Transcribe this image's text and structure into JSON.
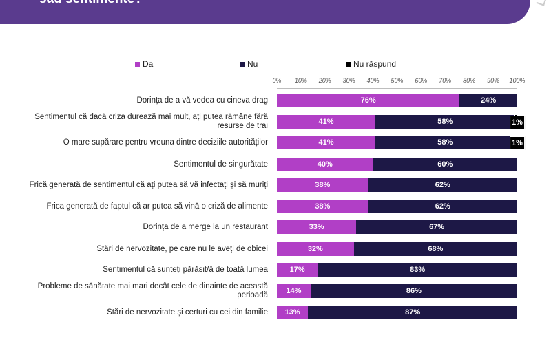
{
  "header": {
    "title": "sau sentimente?"
  },
  "colors": {
    "banner": "#5a3b8e",
    "da": "#b13fc6",
    "nu": "#1d1846",
    "nu_raspund": "#000000"
  },
  "chart_data": {
    "type": "bar",
    "orientation": "horizontal",
    "stacked": true,
    "title": "",
    "xlabel": "",
    "ylabel": "",
    "xlim": [
      0,
      100
    ],
    "ticks": [
      "0%",
      "10%",
      "20%",
      "30%",
      "40%",
      "50%",
      "60%",
      "70%",
      "80%",
      "90%",
      "100%"
    ],
    "legend": [
      "Da",
      "Nu",
      "Nu răspund"
    ],
    "legend_position": "top",
    "categories": [
      "Dorința de a vă vedea cu cineva drag",
      "Sentimentul că dacă criza durează mai mult, ați putea rămâne fără resurse de trai",
      "O mare supărare pentru vreuna dintre deciziile autorităților",
      "Sentimentul de singurătate",
      "Frică generată de sentimentul că ați putea să vă infectați și să muriți",
      "Frica generată de faptul că ar putea să vină o criză de alimente",
      "Dorința de a merge la un restaurant",
      "Stări de nervozitate, pe care nu le aveți de obicei",
      "Sentimentul că sunteți părăsit/ă de toată lumea",
      "Probleme de sănătate mai mari decât cele de dinainte de această perioadă",
      "Stări de nervozitate și certuri cu cei din familie"
    ],
    "series": [
      {
        "name": "Da",
        "values": [
          76,
          41,
          41,
          40,
          38,
          38,
          33,
          32,
          17,
          14,
          13
        ],
        "labels": [
          "76%",
          "41%",
          "41%",
          "40%",
          "38%",
          "38%",
          "33%",
          "32%",
          "17%",
          "14%",
          "13%"
        ]
      },
      {
        "name": "Nu",
        "values": [
          24,
          58,
          58,
          60,
          62,
          62,
          67,
          68,
          83,
          86,
          87
        ],
        "labels": [
          "24%",
          "58%",
          "58%",
          "60%",
          "62%",
          "62%",
          "67%",
          "68%",
          "83%",
          "86%",
          "87%"
        ]
      },
      {
        "name": "Nu răspund",
        "values": [
          0,
          1,
          1,
          0,
          0,
          0,
          0,
          0,
          0,
          0,
          0
        ],
        "labels": [
          "",
          "1%",
          "1%",
          "",
          "",
          "",
          "",
          "",
          "",
          "",
          ""
        ]
      }
    ]
  }
}
